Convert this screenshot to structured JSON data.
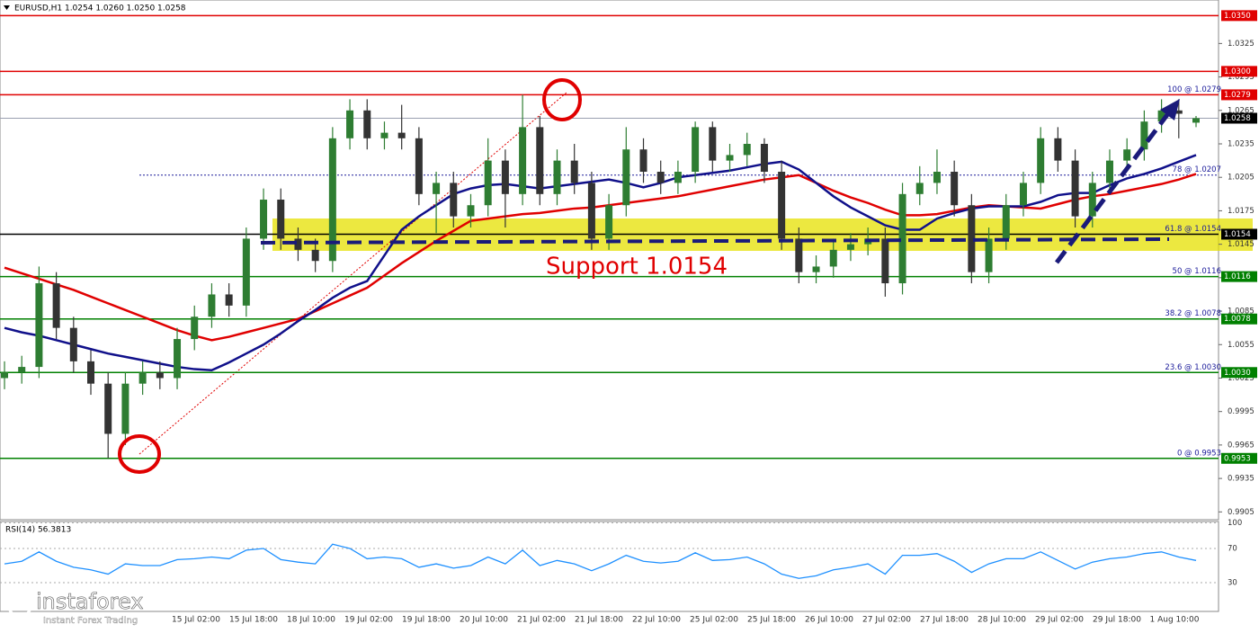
{
  "chart_data": {
    "type": "candlestick",
    "title": "EURUSD,H1  1.0254 1.0260 1.0250 1.0258",
    "annotation": "Support 1.0154",
    "ylim": [
      0.9898,
      1.0364
    ],
    "yticks": [
      0.9905,
      0.9935,
      0.9965,
      0.9995,
      1.0025,
      1.0055,
      1.0085,
      1.0115,
      1.0145,
      1.0175,
      1.0205,
      1.0235,
      1.0265,
      1.0295,
      1.0325
    ],
    "x_labels": [
      "15 Jul 02:00",
      "15 Jul 18:00",
      "18 Jul 10:00",
      "19 Jul 02:00",
      "19 Jul 18:00",
      "20 Jul 10:00",
      "21 Jul 02:00",
      "21 Jul 18:00",
      "22 Jul 10:00",
      "25 Jul 02:00",
      "25 Jul 18:00",
      "26 Jul 10:00",
      "27 Jul 02:00",
      "27 Jul 18:00",
      "28 Jul 10:00",
      "29 Jul 02:00",
      "29 Jul 18:00",
      "1 Aug 10:00"
    ],
    "up_color": "#2e7d32",
    "down_color": "#333333",
    "open": [
      1.0025,
      1.003,
      1.0035,
      1.011,
      1.007,
      1.004,
      1.002,
      0.9975,
      1.002,
      1.003,
      1.0025,
      1.006,
      1.008,
      1.01,
      1.009,
      1.015,
      1.0185,
      1.015,
      1.014,
      1.013,
      1.024,
      1.0265,
      1.024,
      1.0245,
      1.024,
      1.019,
      1.02,
      1.017,
      1.018,
      1.022,
      1.019,
      1.025,
      1.019,
      1.022,
      1.02,
      1.015,
      1.018,
      1.023,
      1.021,
      1.02,
      1.021,
      1.025,
      1.022,
      1.0225,
      1.0235,
      1.021,
      1.015,
      1.012,
      1.0125,
      1.014,
      1.0145,
      1.015,
      1.011,
      1.019,
      1.02,
      1.021,
      1.018,
      1.012,
      1.015,
      1.018,
      1.02,
      1.024,
      1.022,
      1.017,
      1.02,
      1.022,
      1.023,
      1.0255,
      1.0265,
      1.0254
    ],
    "high": [
      1.004,
      1.0045,
      1.0125,
      1.012,
      1.008,
      1.005,
      1.003,
      1.003,
      1.004,
      1.004,
      1.007,
      1.009,
      1.011,
      1.011,
      1.016,
      1.0195,
      1.0195,
      1.016,
      1.015,
      1.025,
      1.0275,
      1.0275,
      1.0255,
      1.027,
      1.025,
      1.021,
      1.021,
      1.019,
      1.024,
      1.023,
      1.0279,
      1.026,
      1.023,
      1.0235,
      1.021,
      1.019,
      1.025,
      1.024,
      1.022,
      1.022,
      1.0255,
      1.0255,
      1.0235,
      1.0245,
      1.024,
      1.022,
      1.016,
      1.0135,
      1.015,
      1.0155,
      1.016,
      1.016,
      1.02,
      1.0215,
      1.023,
      1.022,
      1.019,
      1.016,
      1.019,
      1.021,
      1.025,
      1.025,
      1.023,
      1.021,
      1.023,
      1.024,
      1.0265,
      1.0275,
      1.0275,
      1.026
    ],
    "low": [
      1.0015,
      1.002,
      1.0025,
      1.006,
      1.003,
      1.001,
      0.9953,
      0.9965,
      1.001,
      1.0015,
      1.0015,
      1.005,
      1.007,
      1.008,
      1.008,
      1.014,
      1.014,
      1.013,
      1.012,
      1.012,
      1.023,
      1.023,
      1.023,
      1.023,
      1.018,
      1.0155,
      1.016,
      1.016,
      1.017,
      1.016,
      1.018,
      1.018,
      1.018,
      1.019,
      1.014,
      1.014,
      1.017,
      1.02,
      1.019,
      1.019,
      1.02,
      1.021,
      1.021,
      1.0215,
      1.02,
      1.014,
      1.011,
      1.011,
      1.0115,
      1.013,
      1.0135,
      1.0098,
      1.01,
      1.018,
      1.019,
      1.017,
      1.011,
      1.011,
      1.014,
      1.017,
      1.019,
      1.021,
      1.016,
      1.016,
      1.019,
      1.021,
      1.022,
      1.0245,
      1.024,
      1.025
    ],
    "close": [
      1.003,
      1.0035,
      1.011,
      1.007,
      1.004,
      1.002,
      0.9975,
      1.002,
      1.003,
      1.0025,
      1.006,
      1.008,
      1.01,
      1.009,
      1.015,
      1.0185,
      1.015,
      1.014,
      1.013,
      1.024,
      1.0265,
      1.024,
      1.0245,
      1.024,
      1.019,
      1.02,
      1.017,
      1.018,
      1.022,
      1.019,
      1.025,
      1.019,
      1.022,
      1.02,
      1.015,
      1.018,
      1.023,
      1.021,
      1.02,
      1.021,
      1.025,
      1.022,
      1.0225,
      1.0235,
      1.021,
      1.015,
      1.012,
      1.0125,
      1.014,
      1.0145,
      1.015,
      1.011,
      1.019,
      1.02,
      1.021,
      1.018,
      1.012,
      1.015,
      1.018,
      1.02,
      1.024,
      1.022,
      1.017,
      1.02,
      1.022,
      1.023,
      1.0255,
      1.0265,
      1.0262,
      1.0258
    ],
    "indicators": [
      {
        "color": "#e00000",
        "values": [
          1.0124,
          1.0119,
          1.0114,
          1.0109,
          1.0104,
          1.0098,
          1.0092,
          1.0086,
          1.008,
          1.0074,
          1.0068,
          1.0063,
          1.0059,
          1.0062,
          1.0066,
          1.007,
          1.0074,
          1.0078,
          1.0085,
          1.0092,
          1.0099,
          1.0106,
          1.0117,
          1.0128,
          1.0138,
          1.0148,
          1.0157,
          1.0166,
          1.0168,
          1.017,
          1.0172,
          1.0173,
          1.0175,
          1.0177,
          1.0178,
          1.018,
          1.0182,
          1.0184,
          1.0186,
          1.0188,
          1.0191,
          1.0194,
          1.0197,
          1.02,
          1.0203,
          1.0205,
          1.0207,
          1.02,
          1.0193,
          1.0187,
          1.0182,
          1.0176,
          1.0171,
          1.0171,
          1.0172,
          1.0175,
          1.0178,
          1.018,
          1.0179,
          1.0178,
          1.0177,
          1.0181,
          1.0185,
          1.0188,
          1.019,
          1.0193,
          1.0196,
          1.0199,
          1.0203,
          1.0208
        ]
      },
      {
        "color": "#10108a",
        "values": [
          1.007,
          1.0066,
          1.0063,
          1.0059,
          1.0055,
          1.0051,
          1.0047,
          1.0044,
          1.0041,
          1.0038,
          1.0035,
          1.0033,
          1.0032,
          1.0039,
          1.0047,
          1.0055,
          1.0065,
          1.0076,
          1.0086,
          1.0097,
          1.0106,
          1.0112,
          1.0135,
          1.0158,
          1.017,
          1.018,
          1.019,
          1.0195,
          1.0198,
          1.0199,
          1.0197,
          1.0195,
          1.0197,
          1.0199,
          1.0201,
          1.0203,
          1.02,
          1.0196,
          1.02,
          1.0205,
          1.0207,
          1.0209,
          1.0211,
          1.0214,
          1.0217,
          1.0219,
          1.0212,
          1.02,
          1.0188,
          1.0178,
          1.017,
          1.0162,
          1.0158,
          1.0158,
          1.0168,
          1.0173,
          1.0177,
          1.0179,
          1.0179,
          1.0179,
          1.0183,
          1.0189,
          1.0191,
          1.0191,
          1.0198,
          1.0204,
          1.0208,
          1.0213,
          1.0219,
          1.0225
        ]
      }
    ],
    "levels": [
      {
        "value": 1.035,
        "label": "1.0350",
        "color": "#e00000"
      },
      {
        "value": 1.03,
        "label": "1.0300",
        "color": "#e00000"
      },
      {
        "value": 1.0279,
        "label": "1.0279",
        "color": "#e00000"
      },
      {
        "value": 1.0258,
        "label": "1.0258",
        "color": "#000000"
      },
      {
        "value": 1.0154,
        "label": "1.0154",
        "color": "#000000"
      },
      {
        "value": 1.0116,
        "label": "1.0116",
        "color": "#008000"
      },
      {
        "value": 1.0078,
        "label": "1.0078",
        "color": "#008000"
      },
      {
        "value": 1.003,
        "label": "1.0030",
        "color": "#008000"
      },
      {
        "value": 0.9953,
        "label": "0.9953",
        "color": "#008000"
      }
    ],
    "fib_labels": [
      {
        "value": 1.0279,
        "label": "100 @ 1.0279"
      },
      {
        "value": 1.0207,
        "label": "78 @ 1.0207"
      },
      {
        "value": 1.0154,
        "label": "61.8 @ 1.0154"
      },
      {
        "value": 1.0116,
        "label": "50 @ 1.0116"
      },
      {
        "value": 1.0078,
        "label": "38.2 @ 1.0078"
      },
      {
        "value": 1.003,
        "label": "23.6 @ 1.0030"
      },
      {
        "value": 0.9953,
        "label": "0 @ 0.9953"
      }
    ],
    "rsi": {
      "label": "RSI(14) 56.3813",
      "color": "#1e90ff",
      "ylim": [
        0,
        100
      ],
      "yticks": [
        30,
        70,
        100
      ],
      "values": [
        52,
        55,
        66,
        55,
        48,
        45,
        40,
        52,
        50,
        50,
        57,
        58,
        60,
        58,
        68,
        70,
        57,
        54,
        52,
        75,
        70,
        58,
        60,
        58,
        48,
        52,
        47,
        50,
        60,
        52,
        68,
        50,
        56,
        52,
        44,
        52,
        62,
        55,
        53,
        55,
        65,
        56,
        57,
        60,
        52,
        40,
        35,
        38,
        45,
        48,
        52,
        40,
        62,
        62,
        64,
        55,
        42,
        52,
        58,
        58,
        66,
        56,
        46,
        54,
        58,
        60,
        64,
        66,
        60,
        56
      ]
    },
    "logo": {
      "name": "instaforex",
      "tagline": "Instant Forex Trading"
    }
  }
}
